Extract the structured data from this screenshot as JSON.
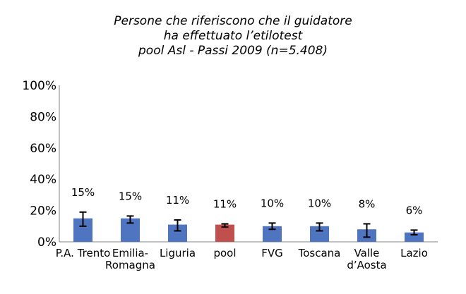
{
  "chart_data": {
    "type": "bar",
    "title_lines": [
      "Persone che riferiscono che il guidatore",
      "ha effettuato l’etilotest",
      "pool Asl - Passi 2009 (n=5.408)"
    ],
    "categories": [
      [
        "P.A. Trento"
      ],
      [
        "Emilia-",
        "Romagna"
      ],
      [
        "Liguria"
      ],
      [
        "pool"
      ],
      [
        "FVG"
      ],
      [
        "Toscana"
      ],
      [
        "Valle",
        "d’Aosta"
      ],
      [
        "Lazio"
      ]
    ],
    "values": [
      15,
      15,
      11,
      11,
      10,
      10,
      8,
      6
    ],
    "data_labels": [
      "15%",
      "15%",
      "11%",
      "11%",
      "10%",
      "10%",
      "8%",
      "6%"
    ],
    "error_low": [
      10,
      12,
      7,
      9.5,
      8,
      7,
      3,
      4.5
    ],
    "error_high": [
      19,
      16.5,
      14,
      11.5,
      12,
      12,
      11.5,
      7.5
    ],
    "colors": [
      "#4f74c0",
      "#4f74c0",
      "#4f74c0",
      "#c0504d",
      "#4f74c0",
      "#4f74c0",
      "#4f74c0",
      "#4f74c0"
    ],
    "ylim": [
      0,
      100
    ],
    "yticks": [
      "0%",
      "20%",
      "40%",
      "60%",
      "80%",
      "100%"
    ],
    "ytick_values": [
      0,
      20,
      40,
      60,
      80,
      100
    ],
    "grid": false,
    "legend": "none"
  }
}
